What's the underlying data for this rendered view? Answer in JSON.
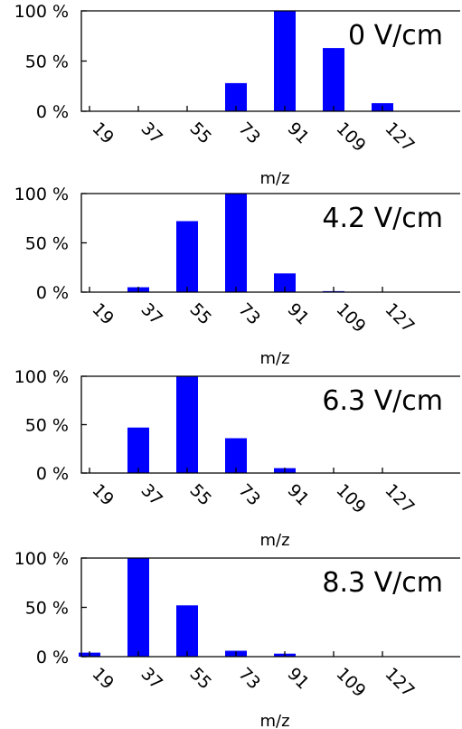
{
  "colors": {
    "bar": "#0000ff",
    "axis": "#000000",
    "background": "#ffffff"
  },
  "chart_data": [
    {
      "type": "bar",
      "annotation": "0 V/cm",
      "xlabel": "m/z",
      "ylabel": "",
      "ylim": [
        0,
        100
      ],
      "yticks": [
        "0 %",
        "50 %",
        "100 %"
      ],
      "categories": [
        "19",
        "37",
        "55",
        "73",
        "91",
        "109",
        "127"
      ],
      "bars": [
        {
          "x": 73,
          "value": 28
        },
        {
          "x": 91,
          "value": 100
        },
        {
          "x": 109,
          "value": 63
        },
        {
          "x": 127,
          "value": 8
        }
      ],
      "grid": false,
      "legend": "none"
    },
    {
      "type": "bar",
      "annotation": "4.2 V/cm",
      "xlabel": "m/z",
      "ylabel": "",
      "ylim": [
        0,
        100
      ],
      "yticks": [
        "0 %",
        "50 %",
        "100 %"
      ],
      "categories": [
        "19",
        "37",
        "55",
        "73",
        "91",
        "109",
        "127"
      ],
      "bars": [
        {
          "x": 37,
          "value": 5
        },
        {
          "x": 55,
          "value": 72
        },
        {
          "x": 73,
          "value": 100
        },
        {
          "x": 91,
          "value": 19
        },
        {
          "x": 109,
          "value": 1
        }
      ],
      "grid": false,
      "legend": "none"
    },
    {
      "type": "bar",
      "annotation": "6.3 V/cm",
      "xlabel": "m/z",
      "ylabel": "",
      "ylim": [
        0,
        100
      ],
      "yticks": [
        "0 %",
        "50 %",
        "100 %"
      ],
      "categories": [
        "19",
        "37",
        "55",
        "73",
        "91",
        "109",
        "127"
      ],
      "bars": [
        {
          "x": 37,
          "value": 47
        },
        {
          "x": 55,
          "value": 100
        },
        {
          "x": 73,
          "value": 36
        },
        {
          "x": 91,
          "value": 5
        }
      ],
      "grid": false,
      "legend": "none"
    },
    {
      "type": "bar",
      "annotation": "8.3 V/cm",
      "xlabel": "m/z",
      "ylabel": "",
      "ylim": [
        0,
        100
      ],
      "yticks": [
        "0 %",
        "50 %",
        "100 %"
      ],
      "categories": [
        "19",
        "37",
        "55",
        "73",
        "91",
        "109",
        "127"
      ],
      "bars": [
        {
          "x": 19,
          "value": 4
        },
        {
          "x": 37,
          "value": 100
        },
        {
          "x": 55,
          "value": 52
        },
        {
          "x": 73,
          "value": 6
        },
        {
          "x": 91,
          "value": 3
        }
      ],
      "grid": false,
      "legend": "none"
    }
  ]
}
